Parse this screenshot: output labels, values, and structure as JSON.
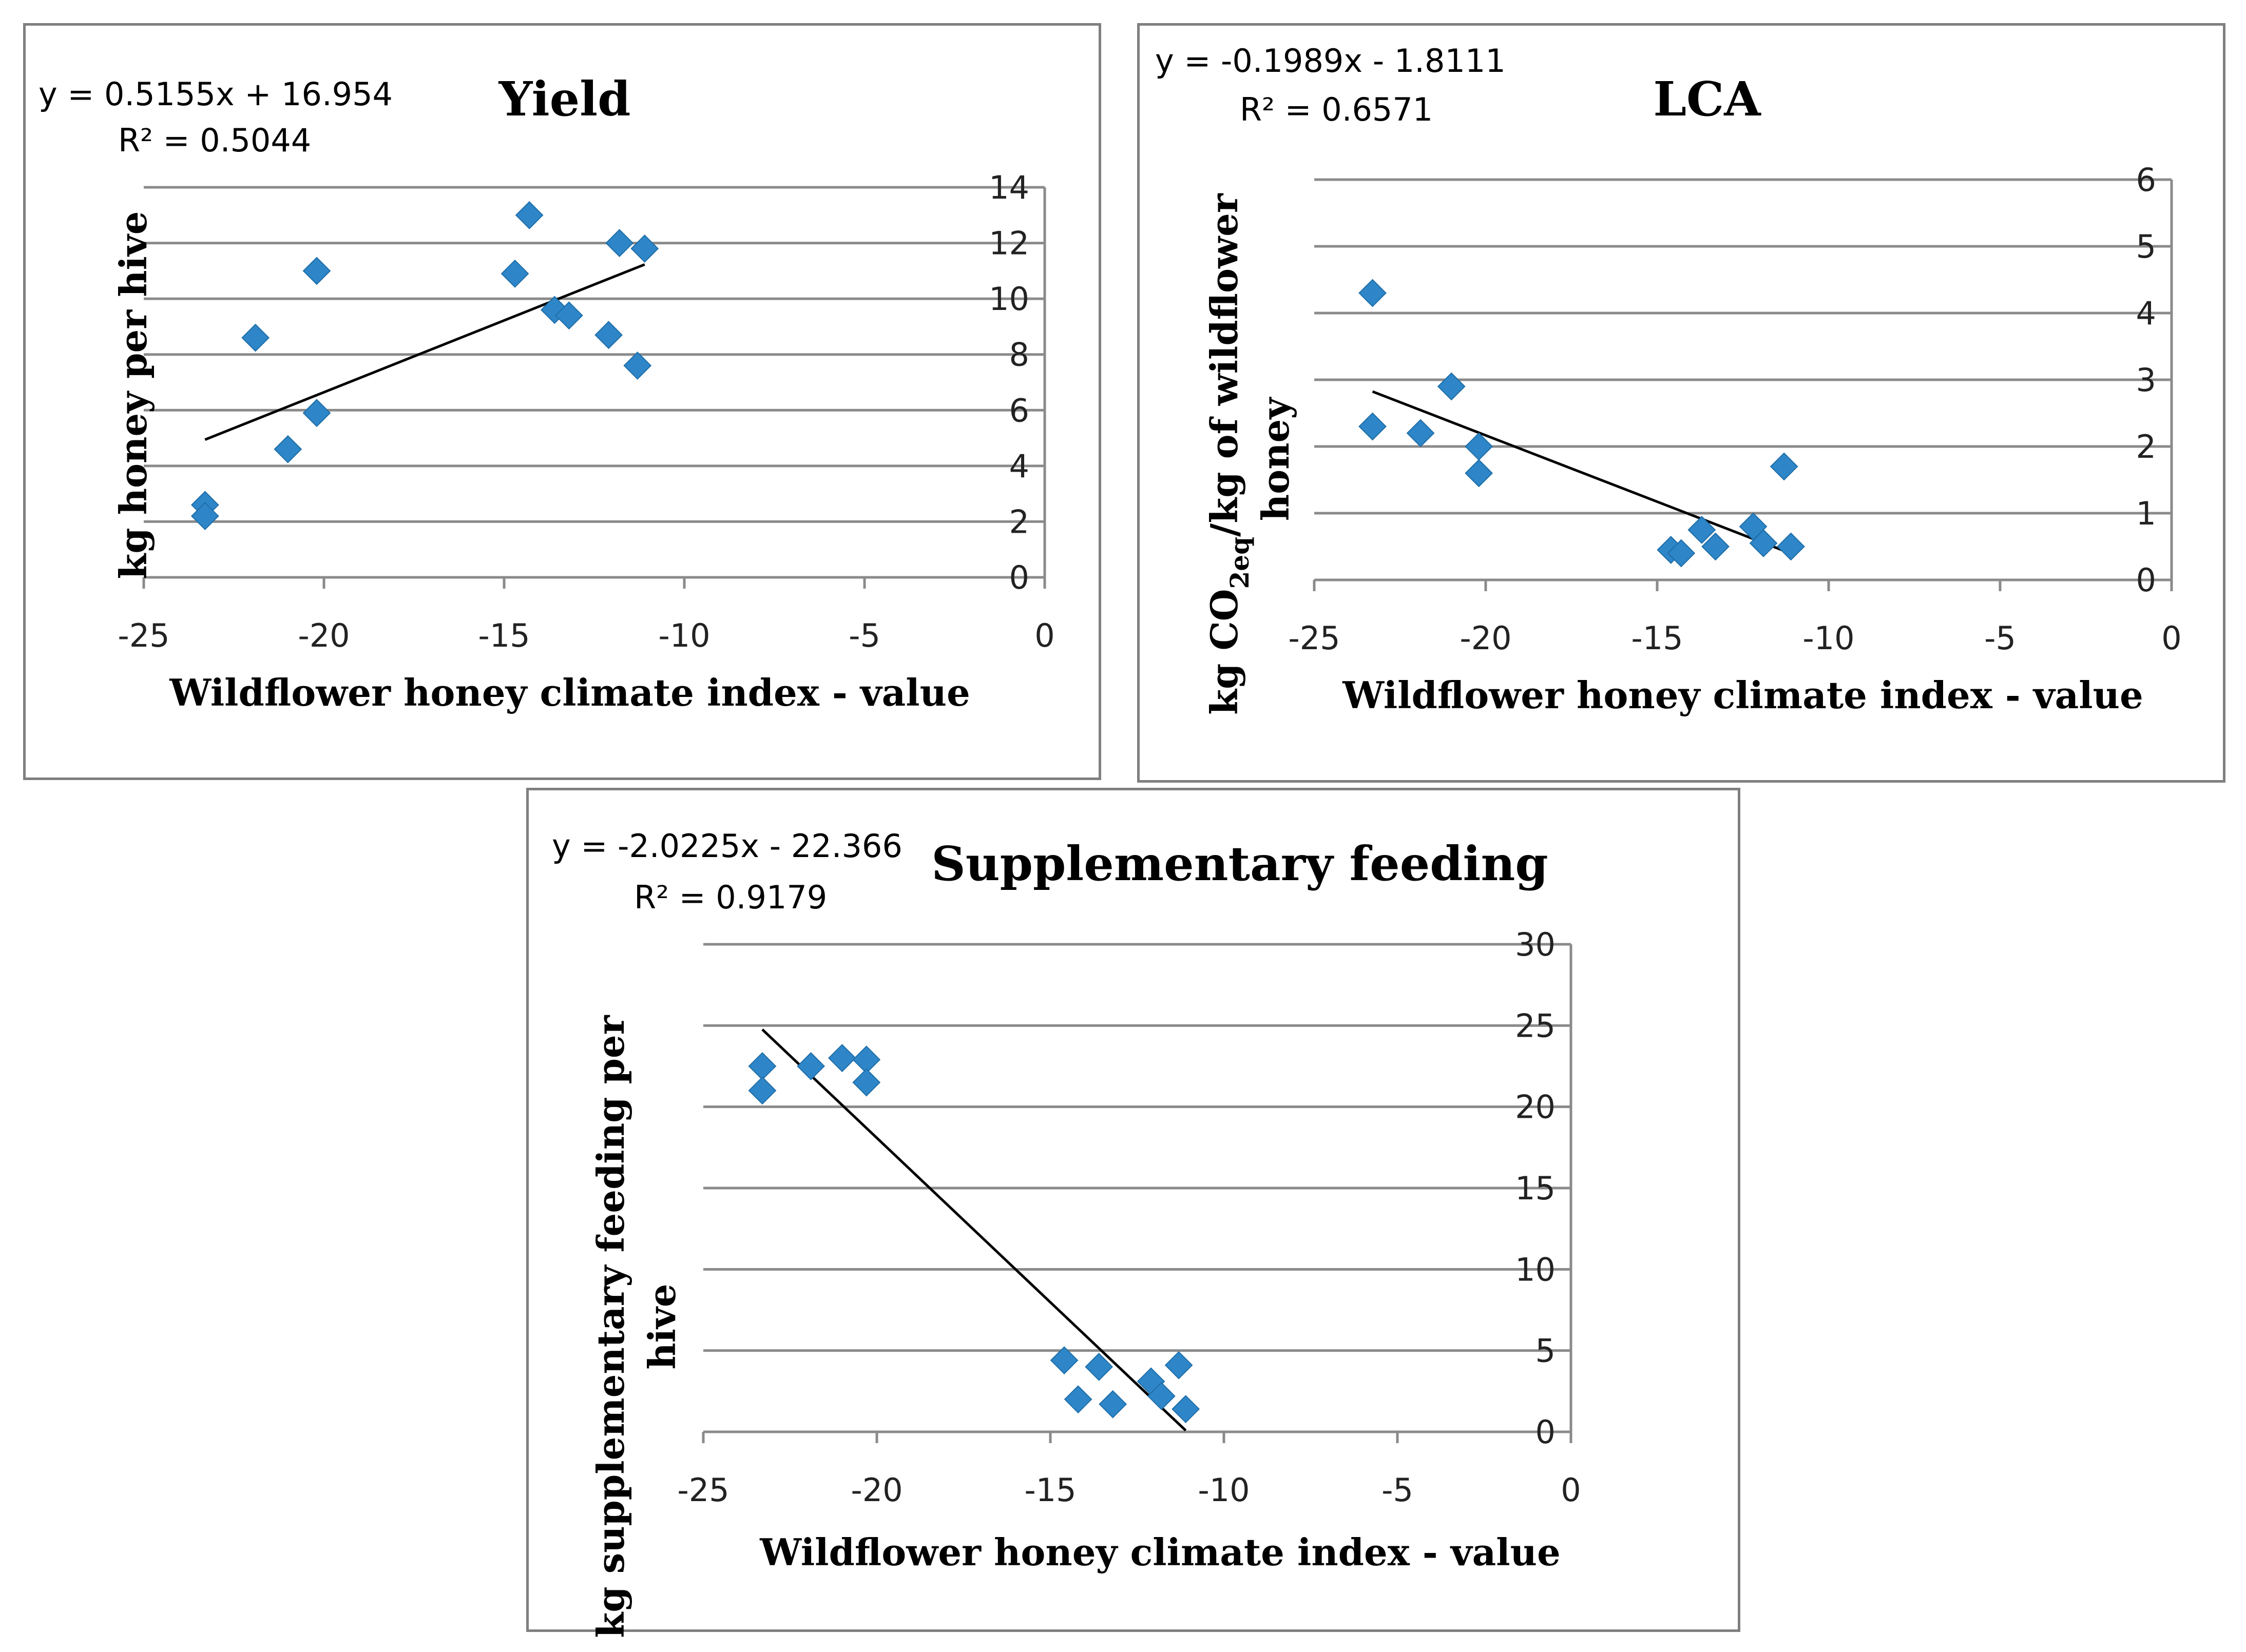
{
  "colors": {
    "marker": "#2e86c8",
    "grid": "#8a8a8a",
    "trend": "#000000"
  },
  "chart_data": [
    {
      "type": "scatter",
      "title": "Yield",
      "xlabel": "Wildflower honey climate index - value",
      "ylabel": "kg honey per hive",
      "equation": "y = 0.5155x + 16.954",
      "r2": "R² = 0.5044",
      "xlim": [
        -25,
        0
      ],
      "ylim": [
        0,
        14
      ],
      "xticks": [
        -25,
        -20,
        -15,
        -10,
        -5,
        0
      ],
      "yticks": [
        0,
        2,
        4,
        6,
        8,
        10,
        12,
        14
      ],
      "trendline": {
        "slope": 0.5155,
        "intercept": 16.954,
        "x_range": [
          -23.3,
          -11.1
        ]
      },
      "points": [
        {
          "x": -23.3,
          "y": 2.6
        },
        {
          "x": -23.3,
          "y": 2.2
        },
        {
          "x": -21.9,
          "y": 8.6
        },
        {
          "x": -21.0,
          "y": 4.6
        },
        {
          "x": -20.2,
          "y": 11.0
        },
        {
          "x": -20.2,
          "y": 5.9
        },
        {
          "x": -14.7,
          "y": 10.9
        },
        {
          "x": -14.3,
          "y": 13.0
        },
        {
          "x": -13.6,
          "y": 9.6
        },
        {
          "x": -13.2,
          "y": 9.4
        },
        {
          "x": -12.1,
          "y": 8.7
        },
        {
          "x": -11.8,
          "y": 12.0
        },
        {
          "x": -11.3,
          "y": 7.6
        },
        {
          "x": -11.1,
          "y": 11.8
        }
      ]
    },
    {
      "type": "scatter",
      "title": "LCA",
      "xlabel": "Wildflower honey climate index - value",
      "ylabel_main": "kg CO",
      "ylabel_sub": "2eq",
      "ylabel_rest": "/kg of wildflower",
      "ylabel_line2": "honey",
      "equation": "y = -0.1989x - 1.8111",
      "r2": "R² = 0.6571",
      "xlim": [
        -25,
        0
      ],
      "ylim": [
        0,
        6
      ],
      "xticks": [
        -25,
        -20,
        -15,
        -10,
        -5,
        0
      ],
      "yticks": [
        0,
        1,
        2,
        3,
        4,
        5,
        6
      ],
      "trendline": {
        "slope": -0.1989,
        "intercept": -1.8111,
        "x_range": [
          -23.3,
          -11.1
        ]
      },
      "points": [
        {
          "x": -23.3,
          "y": 4.3
        },
        {
          "x": -23.3,
          "y": 2.3
        },
        {
          "x": -21.9,
          "y": 2.2
        },
        {
          "x": -21.0,
          "y": 2.9
        },
        {
          "x": -20.2,
          "y": 2.0
        },
        {
          "x": -20.2,
          "y": 1.6
        },
        {
          "x": -14.6,
          "y": 0.45
        },
        {
          "x": -14.3,
          "y": 0.4
        },
        {
          "x": -13.7,
          "y": 0.75
        },
        {
          "x": -13.3,
          "y": 0.5
        },
        {
          "x": -12.2,
          "y": 0.8
        },
        {
          "x": -11.9,
          "y": 0.55
        },
        {
          "x": -11.3,
          "y": 1.7
        },
        {
          "x": -11.1,
          "y": 0.5
        }
      ]
    },
    {
      "type": "scatter",
      "title": "Supplementary feeding",
      "xlabel": "Wildflower honey climate index - value",
      "ylabel": "kg supplementary feeding per",
      "ylabel_line2": "hive",
      "equation": "y = -2.0225x - 22.366",
      "r2": "R² = 0.9179",
      "xlim": [
        -25,
        0
      ],
      "ylim": [
        0,
        30
      ],
      "xticks": [
        -25,
        -20,
        -15,
        -10,
        -5,
        0
      ],
      "yticks": [
        0,
        5,
        10,
        15,
        20,
        25,
        30
      ],
      "trendline": {
        "slope": -2.0225,
        "intercept": -22.366,
        "x_range": [
          -23.3,
          -11.1
        ]
      },
      "points": [
        {
          "x": -23.3,
          "y": 22.5
        },
        {
          "x": -23.3,
          "y": 21.0
        },
        {
          "x": -21.9,
          "y": 22.5
        },
        {
          "x": -21.0,
          "y": 23.0
        },
        {
          "x": -20.3,
          "y": 22.9
        },
        {
          "x": -20.3,
          "y": 21.5
        },
        {
          "x": -14.6,
          "y": 4.4
        },
        {
          "x": -14.2,
          "y": 2.0
        },
        {
          "x": -13.6,
          "y": 4.0
        },
        {
          "x": -13.2,
          "y": 1.7
        },
        {
          "x": -12.1,
          "y": 3.1
        },
        {
          "x": -11.8,
          "y": 2.2
        },
        {
          "x": -11.3,
          "y": 4.1
        },
        {
          "x": -11.1,
          "y": 1.4
        }
      ]
    }
  ]
}
